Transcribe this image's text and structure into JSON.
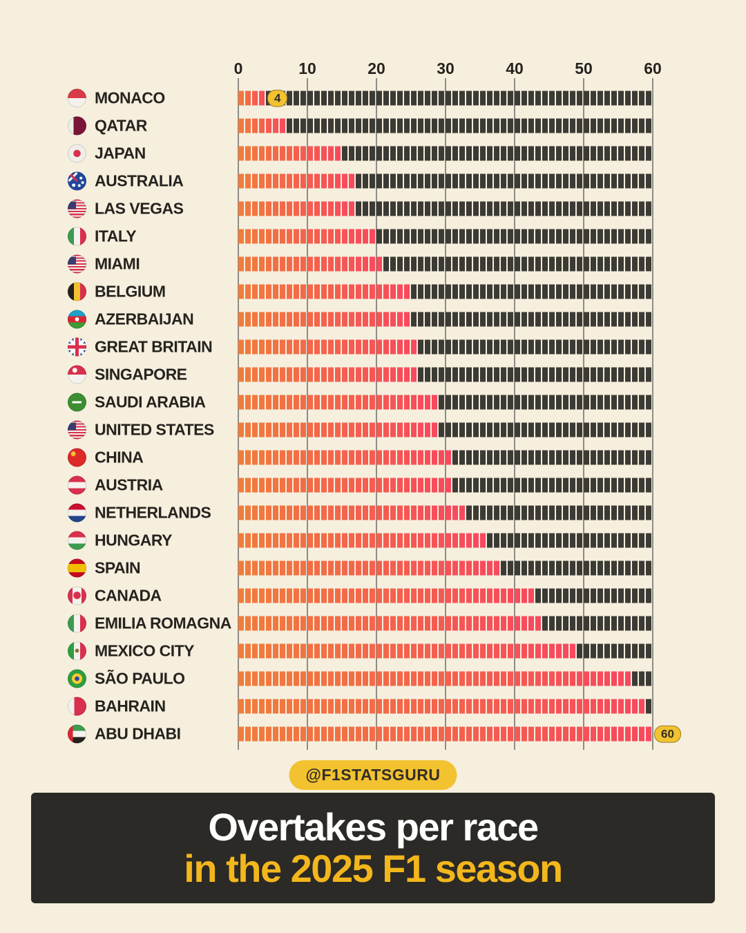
{
  "chart_data": {
    "type": "bar",
    "orientation": "horizontal",
    "title": "Overtakes per race in the 2025 F1 season",
    "categories": [
      "MONACO",
      "QATAR",
      "JAPAN",
      "AUSTRALIA",
      "LAS VEGAS",
      "ITALY",
      "MIAMI",
      "BELGIUM",
      "AZERBAIJAN",
      "GREAT BRITAIN",
      "SINGAPORE",
      "SAUDI ARABIA",
      "UNITED STATES",
      "CHINA",
      "AUSTRIA",
      "NETHERLANDS",
      "HUNGARY",
      "SPAIN",
      "CANADA",
      "EMILIA ROMAGNA",
      "MEXICO CITY",
      "SÃO PAULO",
      "BAHRAIN",
      "ABU DHABI"
    ],
    "values": [
      4,
      7,
      15,
      17,
      17,
      20,
      21,
      25,
      25,
      26,
      26,
      29,
      29,
      31,
      31,
      33,
      36,
      38,
      43,
      44,
      49,
      57,
      59,
      60
    ],
    "xlim": [
      0,
      60
    ],
    "x_ticks": [
      0,
      10,
      20,
      30,
      40,
      50,
      60
    ],
    "grid": true,
    "legend": false,
    "segment_unit": 1,
    "annotations": [
      {
        "category": "MONACO",
        "value_label": "4"
      },
      {
        "category": "ABU DHABI",
        "value_label": "60"
      }
    ]
  },
  "axis": {
    "ticks": [
      "0",
      "10",
      "20",
      "30",
      "40",
      "50",
      "60"
    ]
  },
  "rows": [
    {
      "label": "MONACO",
      "value": 4,
      "flag": "monaco",
      "badge": "4"
    },
    {
      "label": "QATAR",
      "value": 7,
      "flag": "qatar",
      "badge": null
    },
    {
      "label": "JAPAN",
      "value": 15,
      "flag": "japan",
      "badge": null
    },
    {
      "label": "AUSTRALIA",
      "value": 17,
      "flag": "australia",
      "badge": null
    },
    {
      "label": "LAS VEGAS",
      "value": 17,
      "flag": "us",
      "badge": null
    },
    {
      "label": "ITALY",
      "value": 20,
      "flag": "italy",
      "badge": null
    },
    {
      "label": "MIAMI",
      "value": 21,
      "flag": "us",
      "badge": null
    },
    {
      "label": "BELGIUM",
      "value": 25,
      "flag": "belgium",
      "badge": null
    },
    {
      "label": "AZERBAIJAN",
      "value": 25,
      "flag": "azerbaijan",
      "badge": null
    },
    {
      "label": "GREAT BRITAIN",
      "value": 26,
      "flag": "great-britain",
      "badge": null
    },
    {
      "label": "SINGAPORE",
      "value": 26,
      "flag": "singapore",
      "badge": null
    },
    {
      "label": "SAUDI ARABIA",
      "value": 29,
      "flag": "saudi-arabia",
      "badge": null
    },
    {
      "label": "UNITED STATES",
      "value": 29,
      "flag": "us",
      "badge": null
    },
    {
      "label": "CHINA",
      "value": 31,
      "flag": "china",
      "badge": null
    },
    {
      "label": "AUSTRIA",
      "value": 31,
      "flag": "austria",
      "badge": null
    },
    {
      "label": "NETHERLANDS",
      "value": 33,
      "flag": "netherlands",
      "badge": null
    },
    {
      "label": "HUNGARY",
      "value": 36,
      "flag": "hungary",
      "badge": null
    },
    {
      "label": "SPAIN",
      "value": 38,
      "flag": "spain",
      "badge": null
    },
    {
      "label": "CANADA",
      "value": 43,
      "flag": "canada",
      "badge": null
    },
    {
      "label": "EMILIA ROMAGNA",
      "value": 44,
      "flag": "italy",
      "badge": null
    },
    {
      "label": "MEXICO CITY",
      "value": 49,
      "flag": "mexico",
      "badge": null
    },
    {
      "label": "SÃO PAULO",
      "value": 57,
      "flag": "brazil",
      "badge": null
    },
    {
      "label": "BAHRAIN",
      "value": 59,
      "flag": "bahrain",
      "badge": null
    },
    {
      "label": "ABU DHABI",
      "value": 60,
      "flag": "uae",
      "badge": "60"
    }
  ],
  "watermark": "@F1STATSGURU",
  "footer": {
    "line1": "Overtakes per race",
    "line2": "in the 2025 F1 season"
  },
  "colors": {
    "background": "#F6EFDE",
    "bar_gradient_start": "#F07D3C",
    "bar_gradient_end": "#F8485E",
    "bar_remainder": "#3C3A34",
    "gridline": "#8D8C85",
    "badge_bg": "#F2C230",
    "badge_text": "#322E27",
    "footer_bg": "#2C2A26",
    "footer_title": "#FFFFFF",
    "footer_subtitle": "#F3B71C",
    "label_text": "#26231F"
  }
}
